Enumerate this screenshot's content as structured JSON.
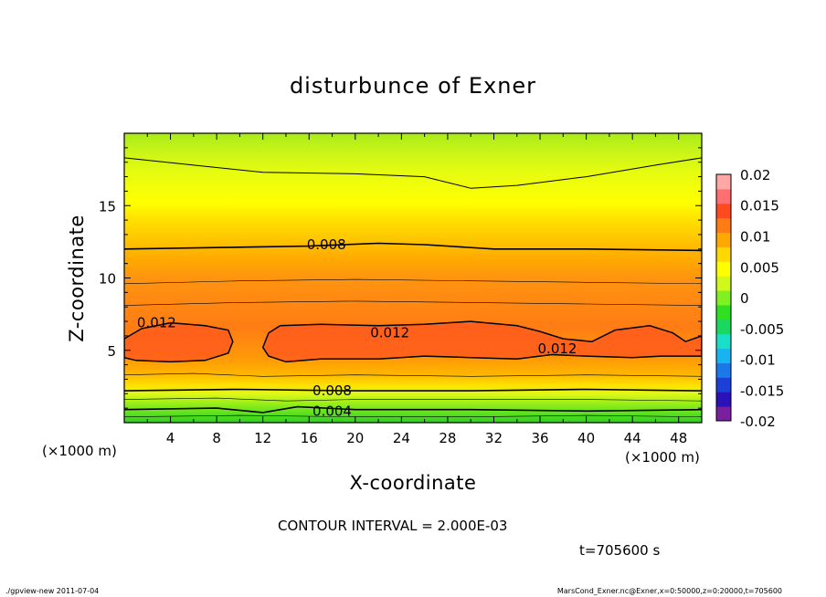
{
  "chart_data": {
    "type": "heatmap",
    "title": "disturbunce of Exner",
    "xlabel": "X-coordinate",
    "ylabel": "Z-coordinate",
    "x_unit": "(×1000 m)",
    "y_unit": "(×1000 m)",
    "xlim": [
      0,
      50
    ],
    "ylim": [
      0,
      20
    ],
    "x_ticks": [
      "4",
      "8",
      "12",
      "16",
      "20",
      "24",
      "28",
      "32",
      "36",
      "40",
      "44",
      "48"
    ],
    "x_tick_values": [
      4,
      8,
      12,
      16,
      20,
      24,
      28,
      32,
      36,
      40,
      44,
      48
    ],
    "y_ticks": [
      "5",
      "10",
      "15"
    ],
    "y_tick_values": [
      5,
      10,
      15
    ],
    "colorbar": {
      "min": -0.02,
      "max": 0.02,
      "step": 0.0025,
      "tick_labels": [
        "0.02",
        "0.015",
        "0.01",
        "0.005",
        "0",
        "-0.005",
        "-0.01",
        "-0.015",
        "-0.02"
      ],
      "tick_values": [
        0.02,
        0.015,
        0.01,
        0.005,
        0,
        -0.005,
        -0.01,
        -0.015,
        -0.02
      ],
      "colors": [
        "#7a1fa0",
        "#2a12b8",
        "#1a40d8",
        "#1a78e8",
        "#18b4f0",
        "#18e0c8",
        "#18d860",
        "#30e020",
        "#80f020",
        "#d0f818",
        "#ffff00",
        "#ffd800",
        "#ffa800",
        "#ff7c14",
        "#ff4a20",
        "#ff6e70",
        "#ffa6a6"
      ]
    },
    "contour_labels": [
      {
        "text": "0.012",
        "x": 2.8,
        "z": 6.9
      },
      {
        "text": "0.012",
        "x": 23.0,
        "z": 6.2
      },
      {
        "text": "0.012",
        "x": 37.5,
        "z": 5.1
      },
      {
        "text": "0.008",
        "x": 17.5,
        "z": 12.3
      },
      {
        "text": "0.008",
        "x": 18.0,
        "z": 2.2
      },
      {
        "text": "0.004",
        "x": 18.0,
        "z": 0.8
      }
    ]
  },
  "contour_interval_text": "CONTOUR INTERVAL = 2.000E-03",
  "time_text": "t=705600 s",
  "footer_left": "./gpview-new   2011-07-04",
  "footer_right": "MarsCond_Exner.nc@Exner,x=0:50000,z=0:20000,t=705600"
}
